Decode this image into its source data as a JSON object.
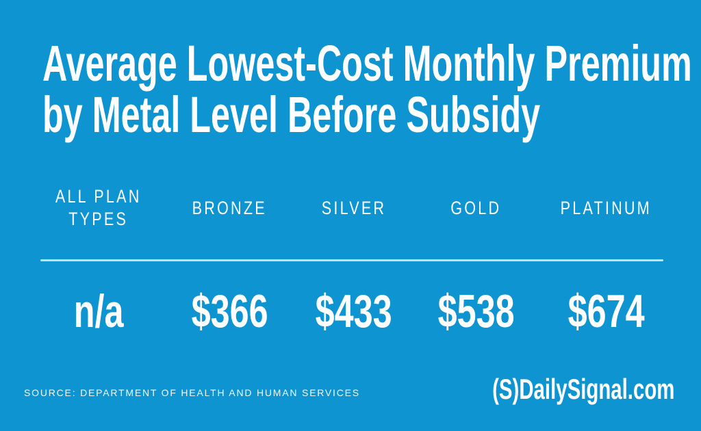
{
  "page": {
    "background_color": "#0d94d1",
    "text_color": "#ffffff",
    "divider_color": "#ffffff"
  },
  "title": {
    "line1": "Average Lowest-Cost Monthly Premium",
    "line2": "by Metal Level Before Subsidy"
  },
  "table": {
    "columns": [
      "ALL PLAN TYPES",
      "BRONZE",
      "SILVER",
      "GOLD",
      "PLATINUM"
    ],
    "values": [
      "n/a",
      "$366",
      "$433",
      "$538",
      "$674"
    ]
  },
  "footer": {
    "source": "SOURCE: DEPARTMENT OF HEALTH AND HUMAN SERVICES",
    "brand": "(S)DailySignal.com"
  },
  "chart_data": {
    "type": "table",
    "title": "Average Lowest-Cost Monthly Premium by Metal Level Before Subsidy",
    "categories": [
      "All Plan Types",
      "Bronze",
      "Silver",
      "Gold",
      "Platinum"
    ],
    "values": [
      null,
      366,
      433,
      538,
      674
    ],
    "display_values": [
      "n/a",
      "$366",
      "$433",
      "$538",
      "$674"
    ],
    "unit": "USD per month",
    "source": "Department of Health and Human Services"
  }
}
